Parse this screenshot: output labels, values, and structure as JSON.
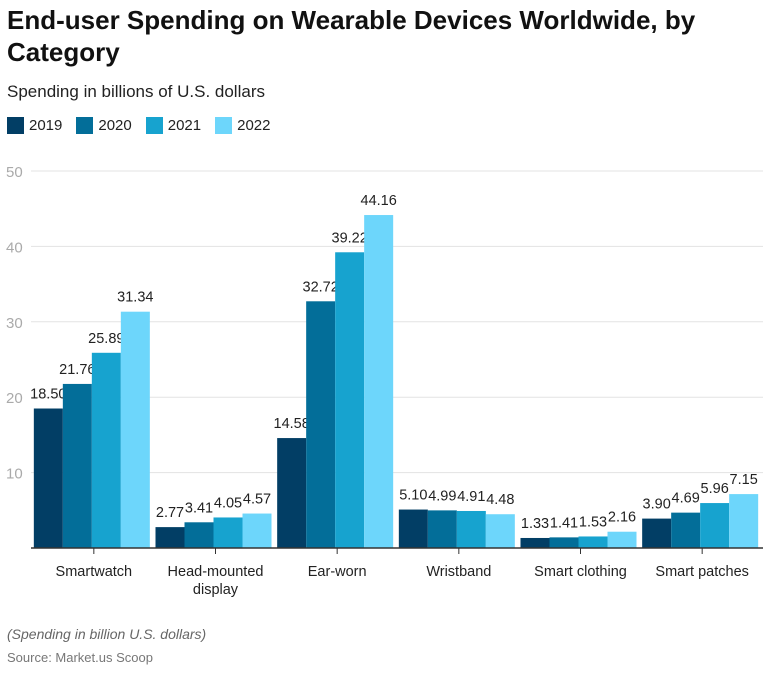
{
  "title": "End-user Spending on Wearable Devices Worldwide, by Category",
  "subtitle": "Spending in billions of U.S. dollars",
  "note": "(Spending in billion U.S. dollars)",
  "source": "Source: Market.us Scoop",
  "chart_data": {
    "type": "bar",
    "title": "End-user Spending on Wearable Devices Worldwide, by Category",
    "ylabel": "Spending in billions of U.S. dollars",
    "xlabel": "",
    "ylim": [
      0,
      50
    ],
    "yticks": [
      10,
      20,
      30,
      40,
      50
    ],
    "grid": true,
    "legend_position": "top-left",
    "categories": [
      "Smartwatch",
      "Head-mounted display",
      "Ear-worn",
      "Wristband",
      "Smart clothing",
      "Smart patches"
    ],
    "category_lines": [
      [
        "Smartwatch"
      ],
      [
        "Head-mounted",
        "display"
      ],
      [
        "Ear-worn"
      ],
      [
        "Wristband"
      ],
      [
        "Smart clothing"
      ],
      [
        "Smart patches"
      ]
    ],
    "series": [
      {
        "name": "2019",
        "color": "#023e65",
        "values": [
          18.5,
          2.77,
          14.58,
          5.1,
          1.33,
          3.9
        ],
        "labels": [
          "18.50",
          "2.77",
          "14.58",
          "5.10",
          "1.33",
          "3.90"
        ]
      },
      {
        "name": "2020",
        "color": "#036e99",
        "values": [
          21.76,
          3.41,
          32.72,
          4.99,
          1.41,
          4.69
        ],
        "labels": [
          "21.76",
          "3.41",
          "32.72",
          "4.99",
          "1.41",
          "4.69"
        ]
      },
      {
        "name": "2021",
        "color": "#17a3cf",
        "values": [
          25.89,
          4.05,
          39.22,
          4.91,
          1.53,
          5.96
        ],
        "labels": [
          "25.89",
          "4.05",
          "39.22",
          "4.91",
          "1.53",
          "5.96"
        ]
      },
      {
        "name": "2022",
        "color": "#6dd6fb",
        "values": [
          31.34,
          4.57,
          44.16,
          4.48,
          2.16,
          7.15
        ],
        "labels": [
          "31.34",
          "4.57",
          "44.16",
          "4.48",
          "2.16",
          "7.15"
        ]
      }
    ]
  }
}
